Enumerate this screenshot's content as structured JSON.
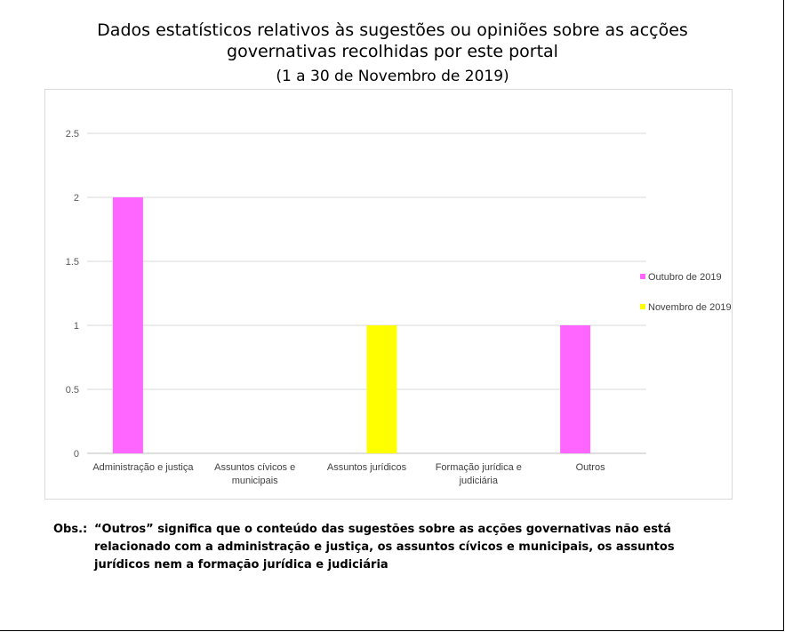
{
  "chart_data": {
    "type": "bar",
    "title_line1": "Dados estatísticos relativos às sugestões ou opiniões sobre as acções",
    "title_line2": "governativas recolhidas por este portal",
    "subtitle": "(1 a 30 de Novembro de 2019)",
    "categories": [
      [
        "Administração e justiça"
      ],
      [
        "Assuntos cívicos e",
        "municipais"
      ],
      [
        "Assuntos jurídicos"
      ],
      [
        "Formação jurídica e",
        "judiciária"
      ],
      [
        "Outros"
      ]
    ],
    "series": [
      {
        "name": "Outubro de 2019",
        "color": "#ff66ff",
        "values": [
          2,
          0,
          0,
          0,
          1
        ]
      },
      {
        "name": "Novembro de 2019",
        "color": "#ffff00",
        "values": [
          0,
          0,
          1,
          0,
          0
        ]
      }
    ],
    "yticks": [
      "0",
      "0.5",
      "1",
      "1.5",
      "2",
      "2.5"
    ],
    "ylim": [
      0,
      2.5
    ],
    "grid": true,
    "legend_position": "right"
  },
  "note": {
    "label": "Obs.:",
    "text": "“Outros” significa que o conteúdo das sugestões sobre as acções governativas não está relacionado com a administração e justiça, os assuntos cívicos e municipais, os assuntos jurídicos nem a formação jurídica e judiciária"
  }
}
